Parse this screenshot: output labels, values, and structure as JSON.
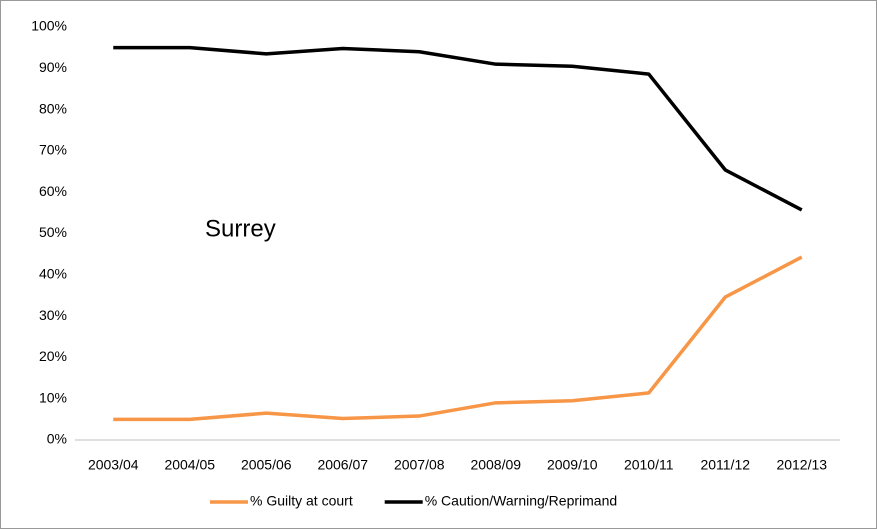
{
  "chart_data": {
    "type": "line",
    "annotation": "Surrey",
    "categories": [
      "2003/04",
      "2004/05",
      "2005/06",
      "2006/07",
      "2007/08",
      "2008/09",
      "2009/10",
      "2010/11",
      "2011/12",
      "2012/13"
    ],
    "series": [
      {
        "name": "% Guilty at court",
        "color": "#f79646",
        "values": [
          5,
          5,
          6.5,
          5.2,
          5.8,
          9,
          9.5,
          11.4,
          34.6,
          44.3
        ]
      },
      {
        "name": "% Caution/Warning/Reprimand",
        "color": "#000000",
        "values": [
          95,
          95,
          93.5,
          94.8,
          94,
          91,
          90.5,
          88.6,
          65.4,
          55.7
        ]
      }
    ],
    "ylim": [
      0,
      100
    ],
    "yticks": [
      {
        "value": 0,
        "label": "0%"
      },
      {
        "value": 10,
        "label": "10%"
      },
      {
        "value": 20,
        "label": "20%"
      },
      {
        "value": 30,
        "label": "30%"
      },
      {
        "value": 40,
        "label": "40%"
      },
      {
        "value": 50,
        "label": "50%"
      },
      {
        "value": 60,
        "label": "60%"
      },
      {
        "value": 70,
        "label": "70%"
      },
      {
        "value": 80,
        "label": "80%"
      },
      {
        "value": 90,
        "label": "90%"
      },
      {
        "value": 100,
        "label": "100%"
      }
    ],
    "grid": false,
    "legend": "bottom"
  }
}
